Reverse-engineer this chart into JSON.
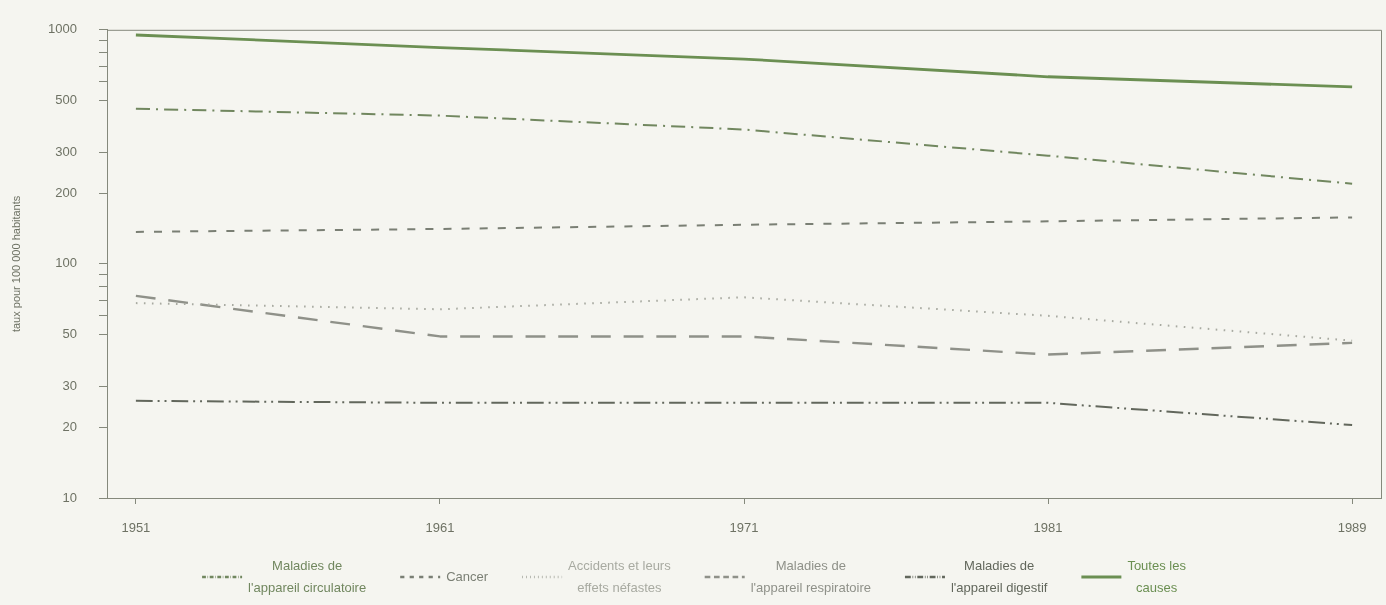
{
  "chart_data": {
    "type": "line",
    "ylabel": "taux pour 100 000 habitants",
    "categories": [
      "1951",
      "1961",
      "1971",
      "1981",
      "1989"
    ],
    "log": true,
    "ylim": [
      10,
      1000
    ],
    "yticks": [
      10,
      20,
      30,
      50,
      {
        "value": 60,
        "label": null
      },
      {
        "value": 70,
        "label": null
      },
      {
        "value": 80,
        "label": null
      },
      {
        "value": 90,
        "label": null
      },
      100,
      200,
      300,
      500,
      {
        "value": 600,
        "label": null
      },
      {
        "value": 700,
        "label": null
      },
      {
        "value": 800,
        "label": null
      },
      {
        "value": 900,
        "label": null
      },
      1000
    ],
    "marker": "none",
    "legend": "bottom",
    "series": [
      {
        "name": "Maladies de l'appareil circulatoire",
        "color": "#71875f",
        "line_style": "dashdot",
        "values": [
          460,
          430,
          375,
          290,
          220
        ]
      },
      {
        "name": "Cancer",
        "color": "#7a7f74",
        "line_style": "dashed",
        "values": [
          137,
          141,
          147,
          152,
          158
        ]
      },
      {
        "name": "Accidents et leurs effets néfastes",
        "color": "#a8aaa1",
        "line_style": "dotted",
        "values": [
          68,
          64,
          72,
          60,
          47
        ]
      },
      {
        "name": "Maladies de l'appareil respiratoire",
        "color": "#8f9189",
        "line_style": "longdash",
        "values": [
          73,
          49,
          49,
          41,
          46
        ]
      },
      {
        "name": "Maladies de l'appareil digestif",
        "color": "#62675c",
        "line_style": "dashdotdot",
        "values": [
          26,
          25.5,
          25.5,
          25.5,
          20.5
        ]
      },
      {
        "name": "Toutes les causes",
        "color": "#6b8f52",
        "line_style": "solid",
        "values": [
          950,
          840,
          750,
          630,
          570
        ]
      }
    ]
  }
}
